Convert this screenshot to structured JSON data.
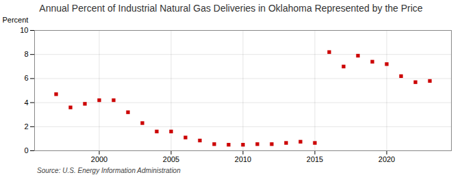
{
  "chart_data": {
    "type": "scatter",
    "title": "Annual Percent of Industrial Natural Gas Deliveries in Oklahoma Represented by the Price",
    "ylabel": "Percent",
    "source": "Source: U.S. Energy Information Administration",
    "x": [
      1997,
      1998,
      1999,
      2000,
      2001,
      2002,
      2003,
      2004,
      2005,
      2006,
      2007,
      2008,
      2009,
      2010,
      2011,
      2012,
      2013,
      2014,
      2015,
      2016,
      2017,
      2018,
      2019,
      2020,
      2021,
      2022,
      2023
    ],
    "values": [
      4.7,
      3.6,
      3.9,
      4.2,
      4.2,
      3.2,
      2.3,
      1.6,
      1.6,
      1.1,
      0.85,
      0.55,
      0.5,
      0.5,
      0.55,
      0.55,
      0.65,
      0.75,
      0.65,
      8.2,
      7.0,
      7.9,
      7.4,
      7.2,
      6.2,
      5.7,
      5.8
    ],
    "color": "#cc0000",
    "marker": "square",
    "xlim": [
      1995.5,
      2024.5
    ],
    "xticks": [
      2000,
      2005,
      2010,
      2015,
      2020
    ],
    "ylim": [
      0,
      10
    ],
    "yticks": [
      0,
      2,
      4,
      6,
      8,
      10
    ],
    "grid": true
  }
}
